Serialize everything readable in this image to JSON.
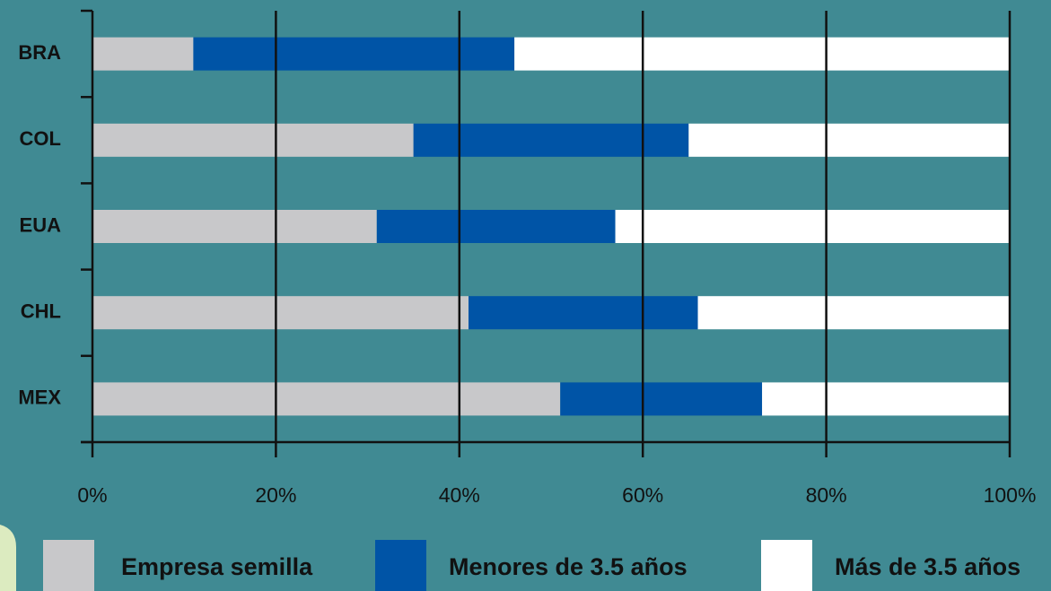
{
  "chart_data": {
    "type": "stacked_bar_horizontal",
    "categories": [
      "BRA",
      "COL",
      "EUA",
      "CHL",
      "MEX"
    ],
    "series": [
      {
        "name": "Empresa semilla",
        "color": "#c8c8ca",
        "values": [
          11,
          35,
          31,
          41,
          51
        ]
      },
      {
        "name": "Menores de 3.5 años",
        "color": "#0054a6",
        "values": [
          35,
          30,
          26,
          25,
          22
        ]
      },
      {
        "name": "Más de 3.5 años",
        "color": "#ffffff",
        "values": [
          54,
          35,
          43,
          34,
          27
        ]
      }
    ],
    "xlim": [
      0,
      100
    ],
    "xticks": [
      {
        "value": 0,
        "label": "0%"
      },
      {
        "value": 20,
        "label": "20%"
      },
      {
        "value": 40,
        "label": "40%"
      },
      {
        "value": 60,
        "label": "60%"
      },
      {
        "value": 80,
        "label": "80%"
      },
      {
        "value": 100,
        "label": "100%"
      }
    ],
    "grid": true,
    "legend": "bottom"
  }
}
